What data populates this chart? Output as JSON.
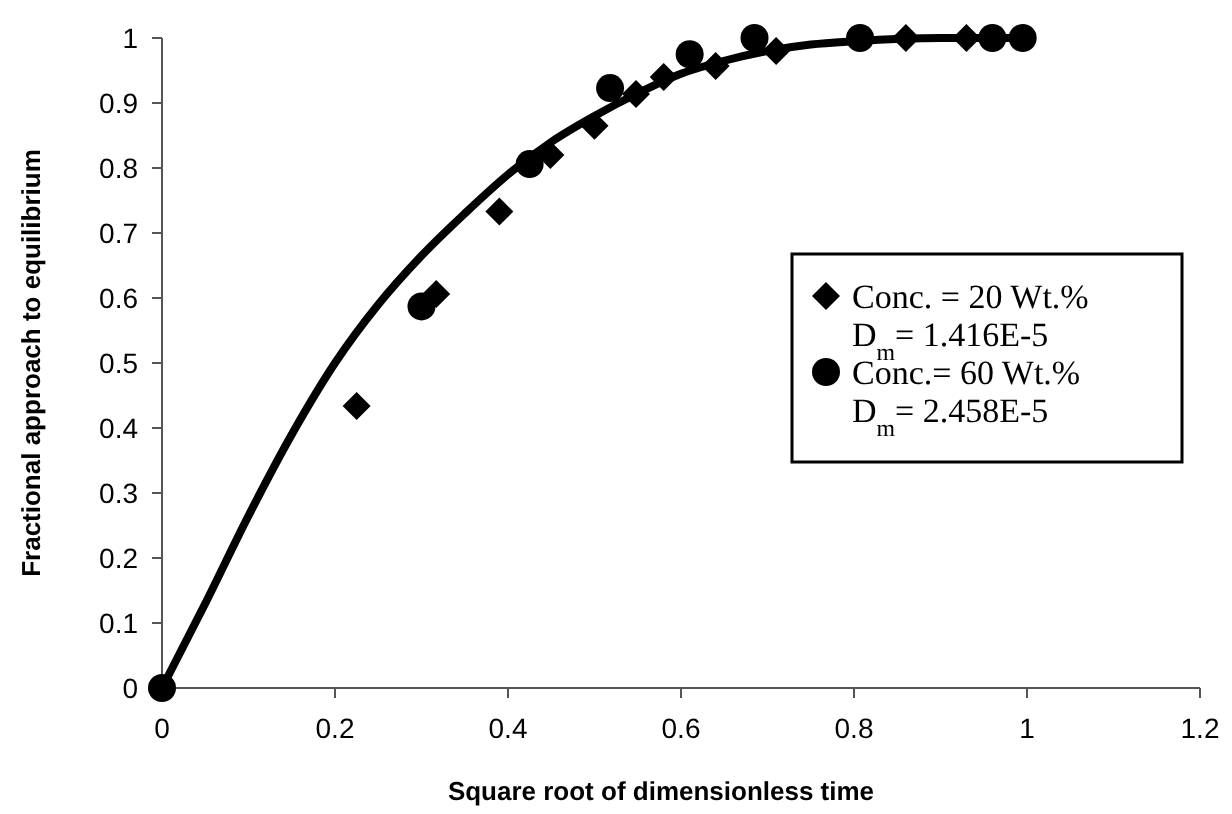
{
  "chart_data": {
    "type": "scatter",
    "xlabel": "Square root of dimensionless time",
    "ylabel": "Fractional approach to equilibrium",
    "xlim": [
      0,
      1.2
    ],
    "xticks": [
      0,
      0.2,
      0.4,
      0.6,
      0.8,
      1,
      1.2
    ],
    "ylim": [
      0,
      1
    ],
    "yticks": [
      0,
      0.1,
      0.2,
      0.3,
      0.4,
      0.5,
      0.6,
      0.7,
      0.8,
      0.9,
      1
    ],
    "grid": false,
    "legend": "right",
    "series": [
      {
        "name": "Conc. = 20 Wt.%\nD$_{m}$= 1.416E-5",
        "color": "#000000",
        "marker": "diamond",
        "x": [
          0.225,
          0.317,
          0.39,
          0.449,
          0.5,
          0.548,
          0.58,
          0.64,
          0.71,
          0.8,
          0.86,
          0.93
        ],
        "values": [
          0.434,
          0.606,
          0.733,
          0.82,
          0.865,
          0.914,
          0.94,
          0.957,
          0.98,
          null,
          1,
          1
        ]
      },
      {
        "name": "Conc.= 60 Wt.%\nD$_{m}$= 2.458E-5",
        "color": "#000000",
        "marker": "circle",
        "x": [
          0,
          0.3,
          0.425,
          0.518,
          0.61,
          0.685,
          0.807,
          0.96,
          0.995
        ],
        "values": [
          0,
          0.587,
          0.806,
          0.923,
          0.975,
          1,
          1,
          1,
          1
        ]
      },
      {
        "type": "line",
        "color": "#000000",
        "marker": "none",
        "line_style": "solid",
        "x": [
          0,
          0.05,
          0.1,
          0.15,
          0.2,
          0.25,
          0.3,
          0.35,
          0.4,
          0.45,
          0.5,
          0.55,
          0.6,
          0.65,
          0.7,
          0.75,
          0.8,
          0.9,
          1
        ],
        "values": [
          0,
          0.13,
          0.265,
          0.39,
          0.5,
          0.59,
          0.665,
          0.73,
          0.79,
          0.84,
          0.88,
          0.915,
          0.945,
          0.965,
          0.98,
          0.99,
          0.995,
          1,
          1
        ]
      }
    ]
  }
}
